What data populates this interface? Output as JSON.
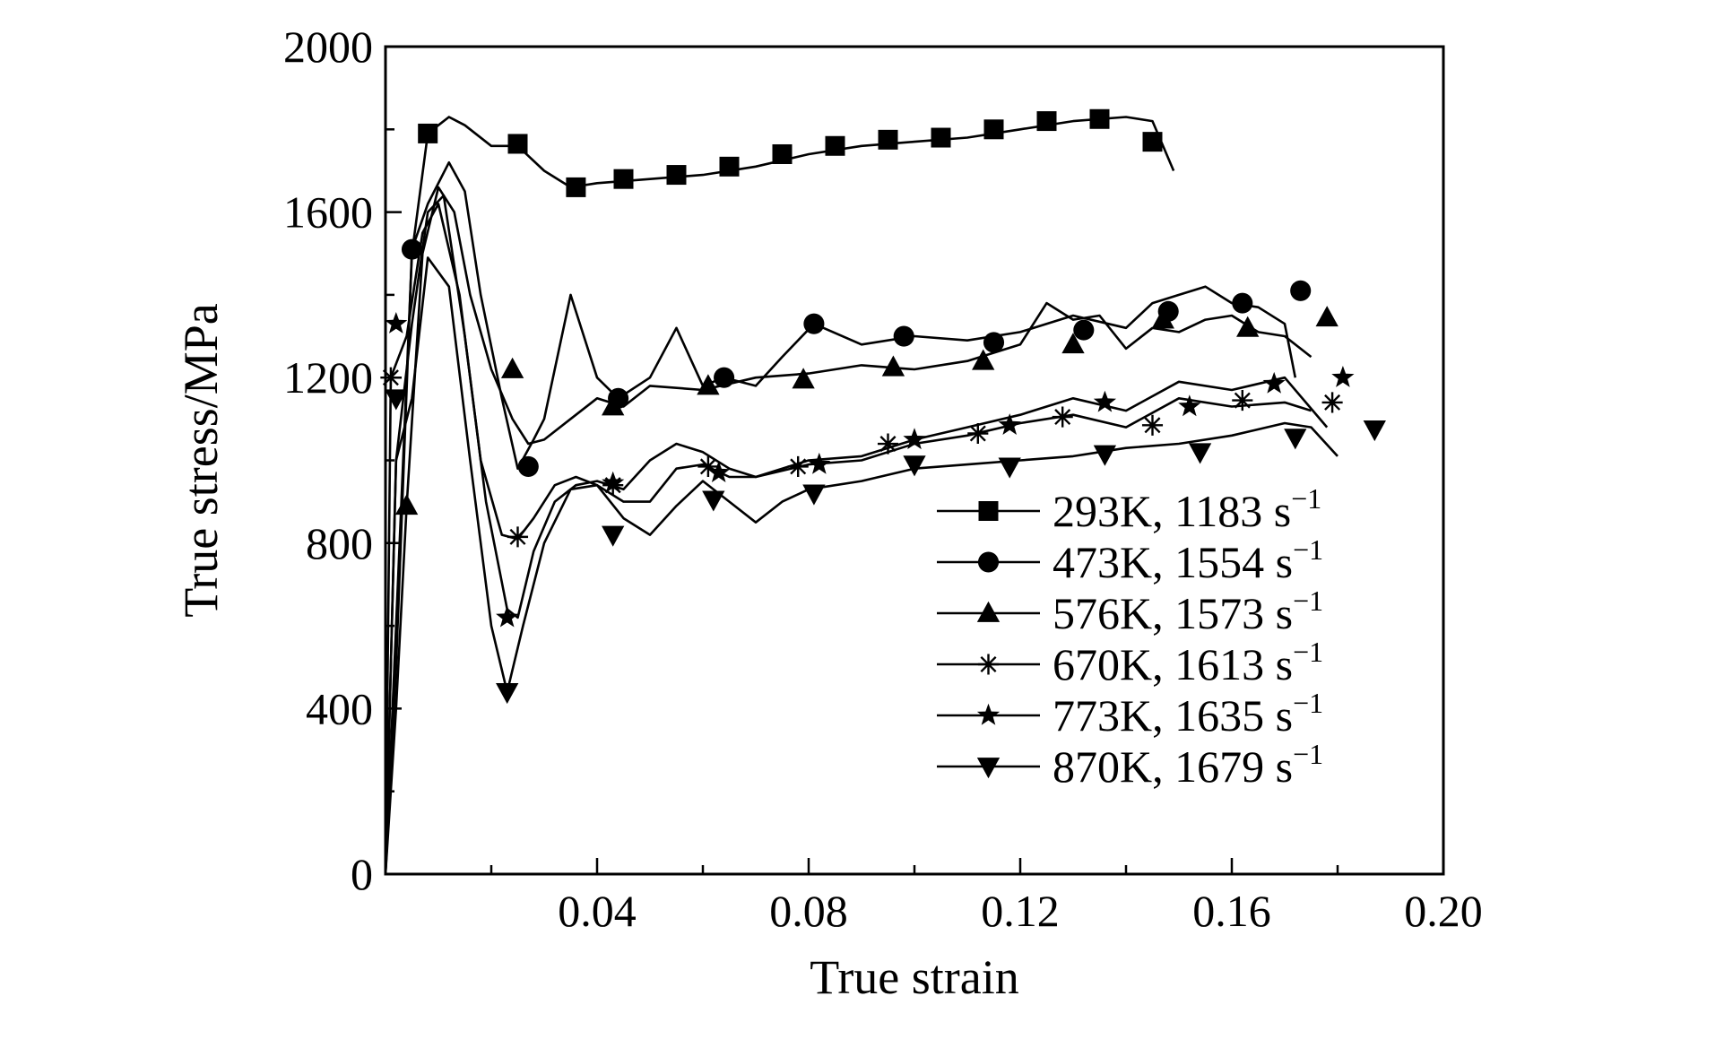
{
  "chart_data": {
    "type": "line",
    "xlabel": "True strain",
    "ylabel": "True stress/MPa",
    "xlim": [
      0,
      0.2
    ],
    "ylim": [
      0,
      2000
    ],
    "xticks": [
      0.04,
      0.08,
      0.12,
      0.16,
      0.2
    ],
    "xtick_labels": [
      "0.04",
      "0.08",
      "0.12",
      "0.16",
      "0.20"
    ],
    "yticks": [
      0,
      400,
      800,
      1200,
      1600,
      2000
    ],
    "ytick_labels": [
      "0",
      "400",
      "800",
      "1200",
      "1600",
      "2000"
    ],
    "grid": false,
    "legend_position": "lower-right",
    "series": [
      {
        "name": "293K, 1183 s",
        "name_superscript": "−1",
        "marker": "square",
        "x": [
          0.0,
          0.002,
          0.005,
          0.008,
          0.01,
          0.012,
          0.015,
          0.02,
          0.025,
          0.03,
          0.035,
          0.04,
          0.05,
          0.06,
          0.07,
          0.08,
          0.09,
          0.1,
          0.11,
          0.12,
          0.13,
          0.14,
          0.145,
          0.149
        ],
        "y": [
          0,
          600,
          1500,
          1790,
          1810,
          1830,
          1810,
          1760,
          1760,
          1700,
          1660,
          1670,
          1680,
          1690,
          1710,
          1740,
          1760,
          1770,
          1780,
          1800,
          1820,
          1830,
          1820,
          1700
        ],
        "marker_x": [
          0.008,
          0.025,
          0.036,
          0.045,
          0.055,
          0.065,
          0.075,
          0.085,
          0.095,
          0.105,
          0.115,
          0.125,
          0.135,
          0.145
        ],
        "marker_y": [
          1790,
          1765,
          1660,
          1680,
          1690,
          1710,
          1740,
          1760,
          1775,
          1780,
          1800,
          1820,
          1825,
          1770
        ]
      },
      {
        "name": "473K, 1554 s",
        "name_superscript": "−1",
        "marker": "circle",
        "x": [
          0.0,
          0.002,
          0.005,
          0.008,
          0.012,
          0.015,
          0.018,
          0.022,
          0.025,
          0.028,
          0.03,
          0.035,
          0.04,
          0.044,
          0.05,
          0.055,
          0.06,
          0.064,
          0.07,
          0.075,
          0.081,
          0.09,
          0.1,
          0.11,
          0.12,
          0.13,
          0.14,
          0.145,
          0.15,
          0.155,
          0.16,
          0.165,
          0.17,
          0.172
        ],
        "y": [
          0,
          500,
          1510,
          1620,
          1720,
          1650,
          1400,
          1150,
          980,
          1050,
          1100,
          1400,
          1200,
          1150,
          1200,
          1320,
          1180,
          1200,
          1180,
          1250,
          1330,
          1280,
          1300,
          1290,
          1310,
          1350,
          1320,
          1380,
          1400,
          1420,
          1380,
          1370,
          1330,
          1200
        ],
        "marker_x": [
          0.005,
          0.027,
          0.044,
          0.064,
          0.081,
          0.098,
          0.115,
          0.132,
          0.148,
          0.162,
          0.173
        ],
        "marker_y": [
          1510,
          985,
          1150,
          1200,
          1330,
          1300,
          1285,
          1315,
          1360,
          1380,
          1410
        ]
      },
      {
        "name": "576K, 1573 s",
        "name_superscript": "−1",
        "marker": "triangle-up",
        "x": [
          0.0,
          0.002,
          0.004,
          0.007,
          0.01,
          0.013,
          0.016,
          0.02,
          0.024,
          0.027,
          0.03,
          0.035,
          0.04,
          0.045,
          0.05,
          0.06,
          0.07,
          0.08,
          0.09,
          0.1,
          0.11,
          0.12,
          0.125,
          0.13,
          0.135,
          0.14,
          0.145,
          0.15,
          0.155,
          0.16,
          0.165,
          0.17,
          0.175
        ],
        "y": [
          0,
          400,
          890,
          1500,
          1660,
          1600,
          1400,
          1220,
          1100,
          1040,
          1050,
          1100,
          1150,
          1130,
          1180,
          1170,
          1200,
          1210,
          1230,
          1220,
          1240,
          1280,
          1380,
          1340,
          1350,
          1270,
          1320,
          1310,
          1340,
          1350,
          1310,
          1300,
          1250
        ],
        "marker_x": [
          0.004,
          0.024,
          0.043,
          0.061,
          0.079,
          0.096,
          0.113,
          0.13,
          0.147,
          0.163,
          0.178
        ],
        "marker_y": [
          890,
          1220,
          1130,
          1180,
          1195,
          1225,
          1240,
          1280,
          1340,
          1320,
          1345
        ]
      },
      {
        "name": "670K, 1613 s",
        "name_superscript": "−1",
        "marker": "asterisk",
        "x": [
          0.0,
          0.001,
          0.004,
          0.007,
          0.01,
          0.014,
          0.018,
          0.022,
          0.025,
          0.028,
          0.032,
          0.036,
          0.04,
          0.045,
          0.05,
          0.055,
          0.06,
          0.065,
          0.07,
          0.08,
          0.09,
          0.1,
          0.11,
          0.12,
          0.13,
          0.14,
          0.15,
          0.16,
          0.17,
          0.175
        ],
        "y": [
          0,
          1200,
          1300,
          1550,
          1620,
          1400,
          1000,
          820,
          810,
          860,
          940,
          960,
          940,
          900,
          900,
          980,
          990,
          960,
          960,
          990,
          1000,
          1040,
          1060,
          1090,
          1110,
          1080,
          1150,
          1130,
          1140,
          1120
        ],
        "marker_x": [
          0.001,
          0.025,
          0.043,
          0.061,
          0.078,
          0.095,
          0.112,
          0.128,
          0.145,
          0.162,
          0.179
        ],
        "marker_y": [
          1200,
          815,
          940,
          985,
          985,
          1040,
          1065,
          1105,
          1085,
          1145,
          1140
        ]
      },
      {
        "name": "773K, 1635 s",
        "name_superscript": "−1",
        "marker": "star",
        "x": [
          0.0,
          0.002,
          0.005,
          0.008,
          0.011,
          0.015,
          0.019,
          0.023,
          0.025,
          0.028,
          0.032,
          0.036,
          0.04,
          0.045,
          0.05,
          0.055,
          0.06,
          0.065,
          0.07,
          0.08,
          0.09,
          0.1,
          0.11,
          0.12,
          0.13,
          0.14,
          0.15,
          0.16,
          0.17,
          0.178
        ],
        "y": [
          0,
          1000,
          1330,
          1600,
          1640,
          1300,
          900,
          640,
          620,
          780,
          900,
          940,
          950,
          930,
          1000,
          1040,
          1020,
          980,
          960,
          1000,
          1010,
          1050,
          1080,
          1110,
          1150,
          1120,
          1190,
          1170,
          1200,
          1080
        ],
        "marker_x": [
          0.002,
          0.023,
          0.043,
          0.063,
          0.082,
          0.1,
          0.118,
          0.136,
          0.152,
          0.168,
          0.181
        ],
        "marker_y": [
          1330,
          620,
          945,
          970,
          990,
          1050,
          1085,
          1140,
          1130,
          1185,
          1200
        ]
      },
      {
        "name": "870K, 1679 s",
        "name_superscript": "−1",
        "marker": "triangle-down",
        "x": [
          0.0,
          0.002,
          0.005,
          0.008,
          0.012,
          0.016,
          0.02,
          0.023,
          0.026,
          0.03,
          0.035,
          0.04,
          0.045,
          0.05,
          0.055,
          0.06,
          0.065,
          0.07,
          0.075,
          0.08,
          0.09,
          0.1,
          0.11,
          0.12,
          0.13,
          0.14,
          0.15,
          0.16,
          0.17,
          0.175,
          0.18
        ],
        "y": [
          0,
          1000,
          1150,
          1490,
          1420,
          1000,
          600,
          440,
          600,
          800,
          930,
          940,
          860,
          820,
          890,
          950,
          900,
          850,
          900,
          930,
          950,
          980,
          990,
          1000,
          1010,
          1030,
          1040,
          1060,
          1090,
          1080,
          1010
        ],
        "marker_x": [
          0.002,
          0.023,
          0.043,
          0.062,
          0.081,
          0.1,
          0.118,
          0.136,
          0.154,
          0.172,
          0.187
        ],
        "marker_y": [
          1150,
          440,
          820,
          905,
          920,
          990,
          985,
          1015,
          1020,
          1055,
          1075
        ]
      }
    ]
  }
}
